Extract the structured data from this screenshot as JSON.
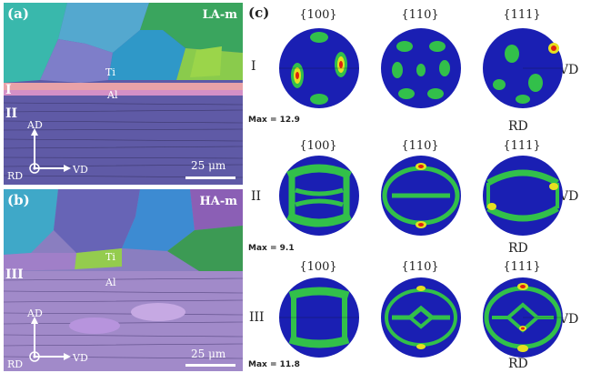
{
  "panel_a": {
    "label": "(a)",
    "corner": "LA-m",
    "grain_ti": "Ti",
    "grain_al": "Al",
    "zone_I": "I",
    "zone_II": "II",
    "axis_ad": "AD",
    "axis_rd": "RD",
    "axis_vd": "VD",
    "scale": "25 μm"
  },
  "panel_b": {
    "label": "(b)",
    "corner": "HA-m",
    "grain_ti": "Ti",
    "grain_al": "Al",
    "zone_III": "III",
    "axis_ad": "AD",
    "axis_rd": "RD",
    "axis_vd": "VD",
    "scale": "25 μm"
  },
  "panel_c": {
    "label": "(c)",
    "columns": [
      "{100}",
      "{110}",
      "{111}"
    ],
    "rows": [
      {
        "roman": "I",
        "max": "Max = 12.9",
        "vd": "VD",
        "rd": "RD"
      },
      {
        "roman": "II",
        "max": "Max = 9.1",
        "vd": "VD",
        "rd": "RD"
      },
      {
        "roman": "III",
        "max": "Max = 11.8",
        "vd": "VD",
        "rd": "RD"
      }
    ]
  },
  "colors": {
    "pf_background": "#1a1fb3",
    "pf_low": "#1e8ad6",
    "pf_mid": "#32c04a",
    "pf_high": "#e6e020",
    "pf_peak": "#e02010"
  }
}
